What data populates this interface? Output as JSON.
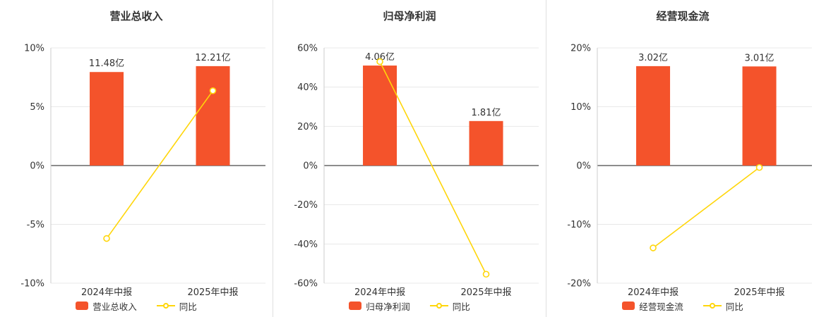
{
  "colors": {
    "bar": "#f4532b",
    "line": "#ffd60a",
    "marker_fill": "#ffffff",
    "text": "#333333",
    "grid": "#e8e8e8",
    "zero_line": "#666666",
    "axis_line": "#cccccc",
    "divider": "#e0e0e0",
    "background": "#ffffff"
  },
  "chart_data": [
    {
      "type": "bar",
      "title": "营业总收入",
      "categories": [
        "2024年中报",
        "2025年中报"
      ],
      "series": [
        {
          "name": "营业总收入",
          "type": "bar",
          "unit": "亿",
          "values": [
            11.48,
            12.21
          ],
          "labels": [
            "11.48亿",
            "12.21亿"
          ],
          "heights_pct": [
            7.95,
            8.45
          ]
        },
        {
          "name": "同比",
          "type": "line",
          "unit": "%",
          "values": [
            -6.2,
            6.36
          ]
        }
      ],
      "ylim": [
        -10,
        10
      ],
      "ytick_values": [
        10,
        5,
        0,
        -5,
        -10
      ],
      "ytick_labels": [
        "10%",
        "5%",
        "0%",
        "-5%",
        "-10%"
      ],
      "legend": [
        "营业总收入",
        "同比"
      ],
      "grid": true,
      "legend_position": "bottom"
    },
    {
      "type": "bar",
      "title": "归母净利润",
      "categories": [
        "2024年中报",
        "2025年中报"
      ],
      "series": [
        {
          "name": "归母净利润",
          "type": "bar",
          "unit": "亿",
          "values": [
            4.06,
            1.81
          ],
          "labels": [
            "4.06亿",
            "1.81亿"
          ],
          "heights_pct": [
            51.0,
            22.7
          ]
        },
        {
          "name": "同比",
          "type": "line",
          "unit": "%",
          "values": [
            53.0,
            -55.42
          ]
        }
      ],
      "ylim": [
        -60,
        60
      ],
      "ytick_values": [
        60,
        40,
        20,
        0,
        -20,
        -40,
        -60
      ],
      "ytick_labels": [
        "60%",
        "40%",
        "20%",
        "0%",
        "-20%",
        "-40%",
        "-60%"
      ],
      "legend": [
        "归母净利润",
        "同比"
      ],
      "grid": true,
      "legend_position": "bottom"
    },
    {
      "type": "bar",
      "title": "经营现金流",
      "categories": [
        "2024年中报",
        "2025年中报"
      ],
      "series": [
        {
          "name": "经营现金流",
          "type": "bar",
          "unit": "亿",
          "values": [
            3.02,
            3.01
          ],
          "labels": [
            "3.02亿",
            "3.01亿"
          ],
          "heights_pct": [
            16.9,
            16.85
          ]
        },
        {
          "name": "同比",
          "type": "line",
          "unit": "%",
          "values": [
            -14.0,
            -0.33
          ]
        }
      ],
      "ylim": [
        -20,
        20
      ],
      "ytick_values": [
        20,
        10,
        0,
        -10,
        -20
      ],
      "ytick_labels": [
        "20%",
        "10%",
        "0%",
        "-10%",
        "-20%"
      ],
      "legend": [
        "经营现金流",
        "同比"
      ],
      "grid": true,
      "legend_position": "bottom"
    }
  ]
}
